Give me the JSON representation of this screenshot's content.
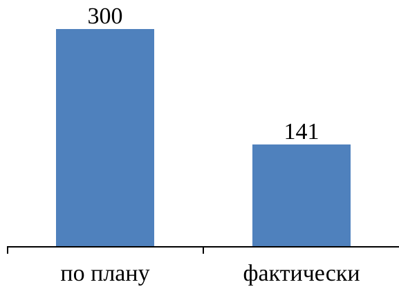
{
  "chart_data": {
    "type": "bar",
    "categories": [
      "по плану",
      "фактически"
    ],
    "values": [
      300,
      141
    ],
    "data_labels": [
      "300",
      "141"
    ],
    "ylim": [
      0,
      300
    ],
    "grid": false,
    "legend": "none",
    "bar_color": "#4F81BD",
    "axis_color": "#000000"
  }
}
